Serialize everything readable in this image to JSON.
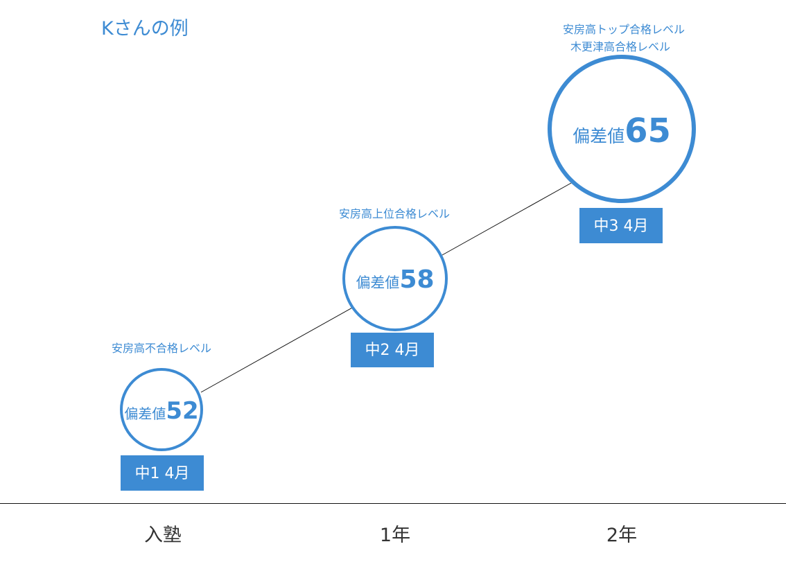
{
  "title": "Kさんの例",
  "accent_color": "#3d8bd3",
  "stages": [
    {
      "level": [
        "安房高不合格レベル"
      ],
      "prefix": "偏差値",
      "score": "52",
      "period": "中1 4月",
      "axis_label": "入塾"
    },
    {
      "level": [
        "安房高上位合格レベル"
      ],
      "prefix": "偏差値",
      "score": "58",
      "period": "中2 4月",
      "axis_label": "1年"
    },
    {
      "level": [
        "安房高トップ合格レベル",
        "木更津高合格レベル"
      ],
      "prefix": "偏差値",
      "score": "65",
      "period": "中3 4月",
      "axis_label": "2年"
    }
  ]
}
